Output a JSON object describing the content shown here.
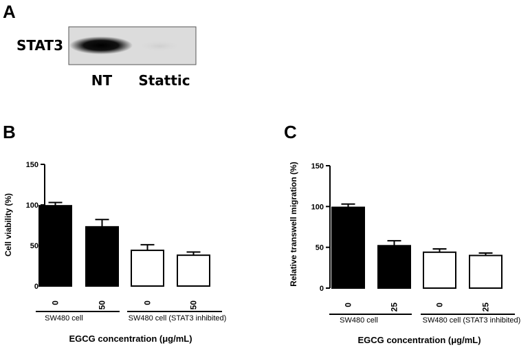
{
  "panel_a": {
    "letter": "A",
    "protein": "STAT3",
    "lanes": [
      "NT",
      "Stattic"
    ]
  },
  "chart_data": [
    {
      "panel": "B",
      "type": "bar",
      "categories": [
        "0",
        "50",
        "0",
        "50"
      ],
      "values": [
        99,
        73,
        44,
        38
      ],
      "errors": [
        4,
        9,
        7,
        4
      ],
      "fills": [
        "#000000",
        "#000000",
        "#ffffff",
        "#ffffff"
      ],
      "groups": [
        {
          "label": "SW480 cell",
          "from": 0,
          "to": 1
        },
        {
          "label": "SW480 cell (STAT3 inhibited)",
          "from": 2,
          "to": 3
        }
      ],
      "title": "",
      "ylabel": "Cell viability (%)",
      "xlabel": "EGCG concentration (μg/mL)",
      "ylim": [
        0,
        150
      ],
      "yticks": [
        0,
        50,
        100,
        150
      ]
    },
    {
      "panel": "C",
      "type": "bar",
      "categories": [
        "0",
        "25",
        "0",
        "25"
      ],
      "values": [
        99,
        52,
        44,
        40
      ],
      "errors": [
        4,
        6,
        4,
        3
      ],
      "fills": [
        "#000000",
        "#000000",
        "#ffffff",
        "#ffffff"
      ],
      "groups": [
        {
          "label": "SW480 cell",
          "from": 0,
          "to": 1
        },
        {
          "label": "SW480 cell (STAT3 inhibited)",
          "from": 2,
          "to": 3
        }
      ],
      "title": "",
      "ylabel": "Relative transwell migration (%)",
      "xlabel": "EGCG concentration (μg/mL)",
      "ylim": [
        0,
        150
      ],
      "yticks": [
        0,
        50,
        100,
        150
      ]
    }
  ]
}
